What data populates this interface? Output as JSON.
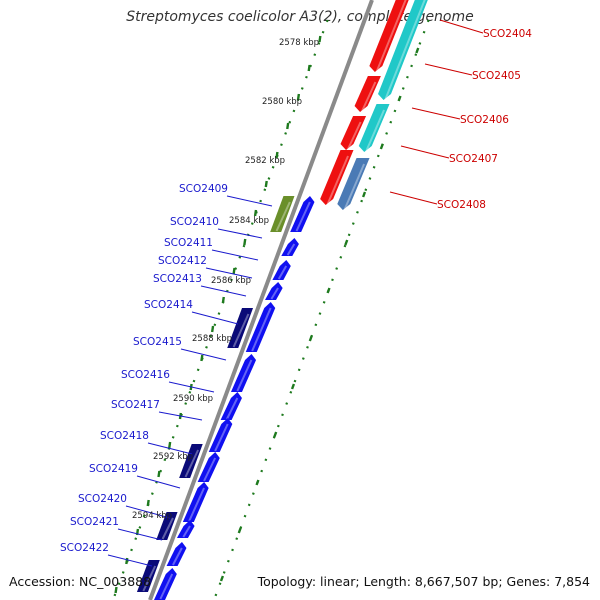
{
  "title": "Streptomyces coelicolor A3(2), complete genome",
  "accession": "Accession: NC_003888",
  "topology": "Topology: linear; Length: 8,667,507 bp; Genes: 7,854",
  "colors": {
    "forward_gene": "#1010f0",
    "forward_gene_dark": "#0a0a78",
    "olive_gene": "#6a8f2a",
    "reverse_gene": "#ee1010",
    "cyan_gene": "#20c8c8",
    "steel_gene": "#4a7ab5",
    "backbone": "#8a8a8a",
    "tick": "#1e7a1e",
    "label_forward": "#1a1acd",
    "label_reverse": "#cc0000"
  },
  "scale_ticks": [
    "2578 kbp",
    "2580 kbp",
    "2582 kbp",
    "2584 kbp",
    "2586 kbp",
    "2588 kbp",
    "2590 kbp",
    "2592 kbp",
    "2594 kbp"
  ],
  "reverse_labels": [
    "SCO2404",
    "SCO2405",
    "SCO2406",
    "SCO2407",
    "SCO2408"
  ],
  "forward_labels": [
    "SCO2409",
    "SCO2410",
    "SCO2411",
    "SCO2412",
    "SCO2413",
    "SCO2414",
    "SCO2415",
    "SCO2416",
    "SCO2417",
    "SCO2418",
    "SCO2419",
    "SCO2420",
    "SCO2421",
    "SCO2422"
  ]
}
